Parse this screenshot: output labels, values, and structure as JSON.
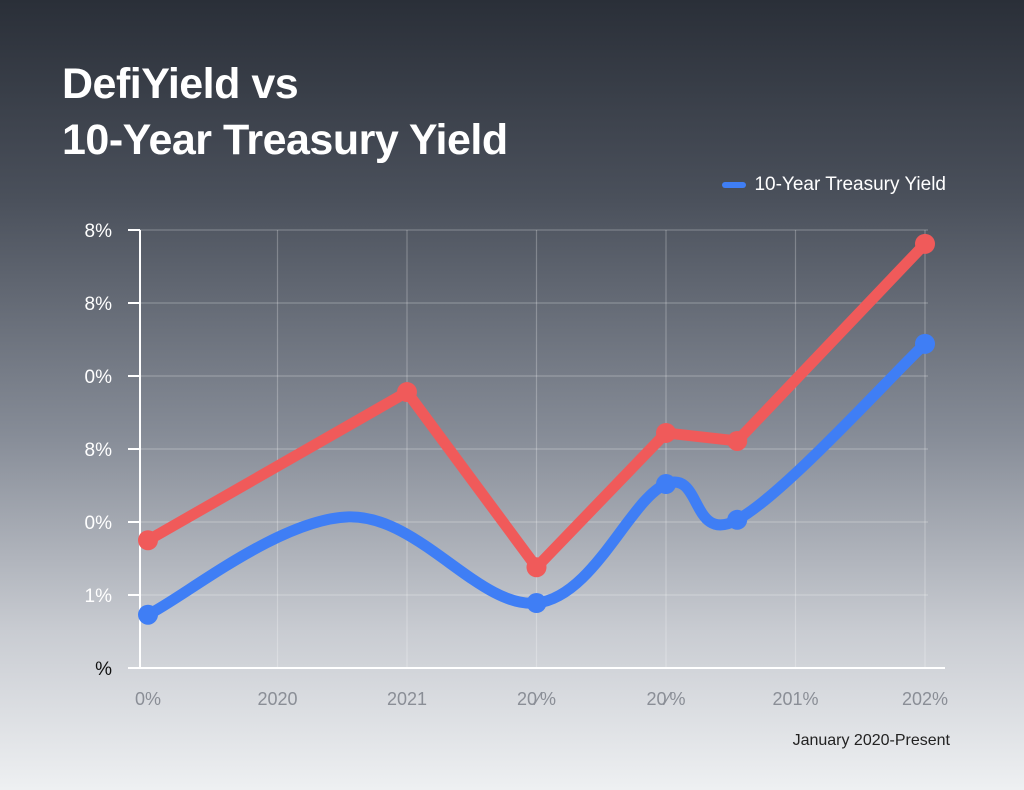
{
  "title_lines": [
    "DefiYield vs",
    "10-Year Treasury Yield"
  ],
  "legend": [
    {
      "label": "10-Year Treasury Yield",
      "color": "#3f7ef5"
    }
  ],
  "note": "January 2020-Present",
  "chart_data": {
    "type": "line",
    "title": "DefiYield vs 10-Year Treasury Yield",
    "x_tick_labels": [
      "0%",
      "2020",
      "2021",
      "20⁄%",
      "20⁄%",
      "201%",
      "202%"
    ],
    "y_tick_labels": [
      "%",
      "1%",
      "0%",
      "8%",
      "0%",
      "8%",
      "8%"
    ],
    "xlim": [
      0,
      6
    ],
    "ylim": [
      0,
      6
    ],
    "grid": true,
    "legend_position": "top-right",
    "series": [
      {
        "color": "#f05a5a",
        "x": [
          0,
          2,
          3,
          4,
          4.55,
          6
        ],
        "y": [
          1.75,
          3.78,
          1.38,
          3.22,
          3.11,
          5.81
        ],
        "markers": [
          true,
          true,
          true,
          true,
          true,
          true
        ]
      },
      {
        "name": "10-Year Treasury Yield",
        "color": "#3f7ef5",
        "x": [
          0,
          1.55,
          3,
          4,
          4.55,
          6
        ],
        "y": [
          0.73,
          2.07,
          0.89,
          2.52,
          2.03,
          4.44
        ],
        "markers": [
          true,
          false,
          true,
          true,
          true,
          true
        ]
      }
    ]
  }
}
